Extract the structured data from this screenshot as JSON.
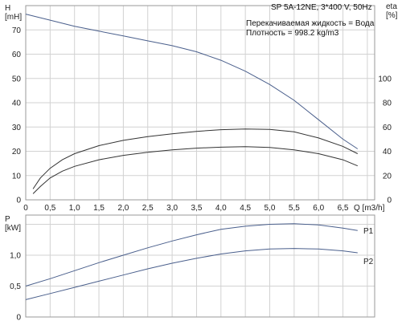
{
  "header": {
    "pump_model": "SP 5A-12NE, 3*400 V, 50Hz",
    "liquid_line": "Перекачиваемая жидкость = Вода",
    "density_line": "Плотность = 998.2 kg/m3"
  },
  "chart_data": [
    {
      "type": "line",
      "title": "",
      "xlabel": "Q [m3/h]",
      "ylabel": "H [mH]",
      "ylabel_parts": [
        "H",
        "[mH]"
      ],
      "y2label": "eta [%]",
      "y2label_parts": [
        "eta",
        "[%]"
      ],
      "xlim": [
        0,
        7.15
      ],
      "ylim": [
        0,
        80
      ],
      "y2lim": [
        0,
        160
      ],
      "x_ticks": [
        {
          "v": 0,
          "label": "0"
        },
        {
          "v": 0.5,
          "label": "0,5"
        },
        {
          "v": 1,
          "label": "1,0"
        },
        {
          "v": 1.5,
          "label": "1,5"
        },
        {
          "v": 2,
          "label": "2,0"
        },
        {
          "v": 2.5,
          "label": "2,5"
        },
        {
          "v": 3,
          "label": "3,0"
        },
        {
          "v": 3.5,
          "label": "3,5"
        },
        {
          "v": 4,
          "label": "4,0"
        },
        {
          "v": 4.5,
          "label": "4,5"
        },
        {
          "v": 5,
          "label": "5,0"
        },
        {
          "v": 5.5,
          "label": "5,5"
        },
        {
          "v": 6,
          "label": "6,0"
        },
        {
          "v": 6.5,
          "label": "6,5"
        }
      ],
      "y_ticks": [
        {
          "v": 0,
          "label": "0"
        },
        {
          "v": 10,
          "label": "10"
        },
        {
          "v": 20,
          "label": "20"
        },
        {
          "v": 30,
          "label": "30"
        },
        {
          "v": 40,
          "label": "40"
        },
        {
          "v": 50,
          "label": "50"
        },
        {
          "v": 60,
          "label": "60"
        },
        {
          "v": 70,
          "label": "70"
        }
      ],
      "y2_ticks": [
        {
          "v": 0,
          "label": "0"
        },
        {
          "v": 20,
          "label": "20"
        },
        {
          "v": 40,
          "label": "40"
        },
        {
          "v": 60,
          "label": "60"
        },
        {
          "v": 80,
          "label": "80"
        },
        {
          "v": 100,
          "label": "100"
        }
      ],
      "x_grid": [
        0.5,
        1,
        1.5,
        2,
        2.5,
        3,
        3.5,
        4,
        4.5,
        5,
        5.5,
        6,
        6.5,
        7
      ],
      "y_grid": [
        10,
        20,
        30,
        40,
        50,
        60,
        70,
        80
      ],
      "grid": true,
      "series": [
        {
          "axis": "left",
          "color": "#4a5f8c",
          "points": [
            [
              0,
              76.5
            ],
            [
              0.5,
              74
            ],
            [
              1,
              71.5
            ],
            [
              1.5,
              69.5
            ],
            [
              2,
              67.5
            ],
            [
              2.5,
              65.5
            ],
            [
              3,
              63.5
            ],
            [
              3.5,
              61
            ],
            [
              4,
              57.5
            ],
            [
              4.5,
              53
            ],
            [
              5,
              47.5
            ],
            [
              5.5,
              41
            ],
            [
              6,
              33
            ],
            [
              6.5,
              25
            ],
            [
              6.8,
              21
            ]
          ]
        },
        {
          "axis": "left",
          "color": "#333333",
          "points": [
            [
              0.15,
              4.5
            ],
            [
              0.3,
              9
            ],
            [
              0.5,
              13
            ],
            [
              0.75,
              16.5
            ],
            [
              1,
              19
            ],
            [
              1.5,
              22.3
            ],
            [
              2,
              24.5
            ],
            [
              2.5,
              26
            ],
            [
              3,
              27.2
            ],
            [
              3.5,
              28.2
            ],
            [
              4,
              28.9
            ],
            [
              4.5,
              29.2
            ],
            [
              5,
              29
            ],
            [
              5.5,
              28
            ],
            [
              6,
              25.5
            ],
            [
              6.5,
              22
            ],
            [
              6.8,
              19
            ]
          ]
        },
        {
          "axis": "left",
          "color": "#333333",
          "points": [
            [
              0.15,
              2.5
            ],
            [
              0.3,
              5.5
            ],
            [
              0.5,
              9
            ],
            [
              0.75,
              11.8
            ],
            [
              1,
              13.8
            ],
            [
              1.5,
              16.5
            ],
            [
              2,
              18.3
            ],
            [
              2.5,
              19.6
            ],
            [
              3,
              20.6
            ],
            [
              3.5,
              21.3
            ],
            [
              4,
              21.7
            ],
            [
              4.5,
              21.9
            ],
            [
              5,
              21.6
            ],
            [
              5.5,
              20.6
            ],
            [
              6,
              19
            ],
            [
              6.5,
              16.5
            ],
            [
              6.8,
              14
            ]
          ]
        }
      ]
    },
    {
      "type": "line",
      "title": "",
      "xlabel": "",
      "ylabel": "P [kW]",
      "ylabel_parts": [
        "P",
        "[kW]"
      ],
      "xlim": [
        0,
        7.15
      ],
      "ylim": [
        0,
        1.65
      ],
      "y_ticks": [
        {
          "v": 0,
          "label": "0"
        },
        {
          "v": 0.5,
          "label": "0,5"
        },
        {
          "v": 1.0,
          "label": "1,0"
        }
      ],
      "x_grid": [
        0.5,
        1,
        1.5,
        2,
        2.5,
        3,
        3.5,
        4,
        4.5,
        5,
        5.5,
        6,
        6.5,
        7
      ],
      "y_grid": [
        0.5,
        1.0,
        1.5
      ],
      "grid": true,
      "series": [
        {
          "name": "P1",
          "color": "#4a5f8c",
          "points": [
            [
              0,
              0.5
            ],
            [
              0.5,
              0.62
            ],
            [
              1,
              0.75
            ],
            [
              1.5,
              0.88
            ],
            [
              2,
              1.0
            ],
            [
              2.5,
              1.12
            ],
            [
              3,
              1.23
            ],
            [
              3.5,
              1.33
            ],
            [
              4,
              1.42
            ],
            [
              4.5,
              1.47
            ],
            [
              5,
              1.5
            ],
            [
              5.5,
              1.51
            ],
            [
              6,
              1.49
            ],
            [
              6.5,
              1.44
            ],
            [
              6.8,
              1.4
            ]
          ]
        },
        {
          "name": "P2",
          "color": "#4a5f8c",
          "points": [
            [
              0,
              0.28
            ],
            [
              0.5,
              0.38
            ],
            [
              1,
              0.48
            ],
            [
              1.5,
              0.58
            ],
            [
              2,
              0.68
            ],
            [
              2.5,
              0.78
            ],
            [
              3,
              0.87
            ],
            [
              3.5,
              0.95
            ],
            [
              4,
              1.02
            ],
            [
              4.5,
              1.07
            ],
            [
              5,
              1.1
            ],
            [
              5.5,
              1.11
            ],
            [
              6,
              1.1
            ],
            [
              6.5,
              1.07
            ],
            [
              6.8,
              1.04
            ]
          ]
        }
      ]
    }
  ]
}
